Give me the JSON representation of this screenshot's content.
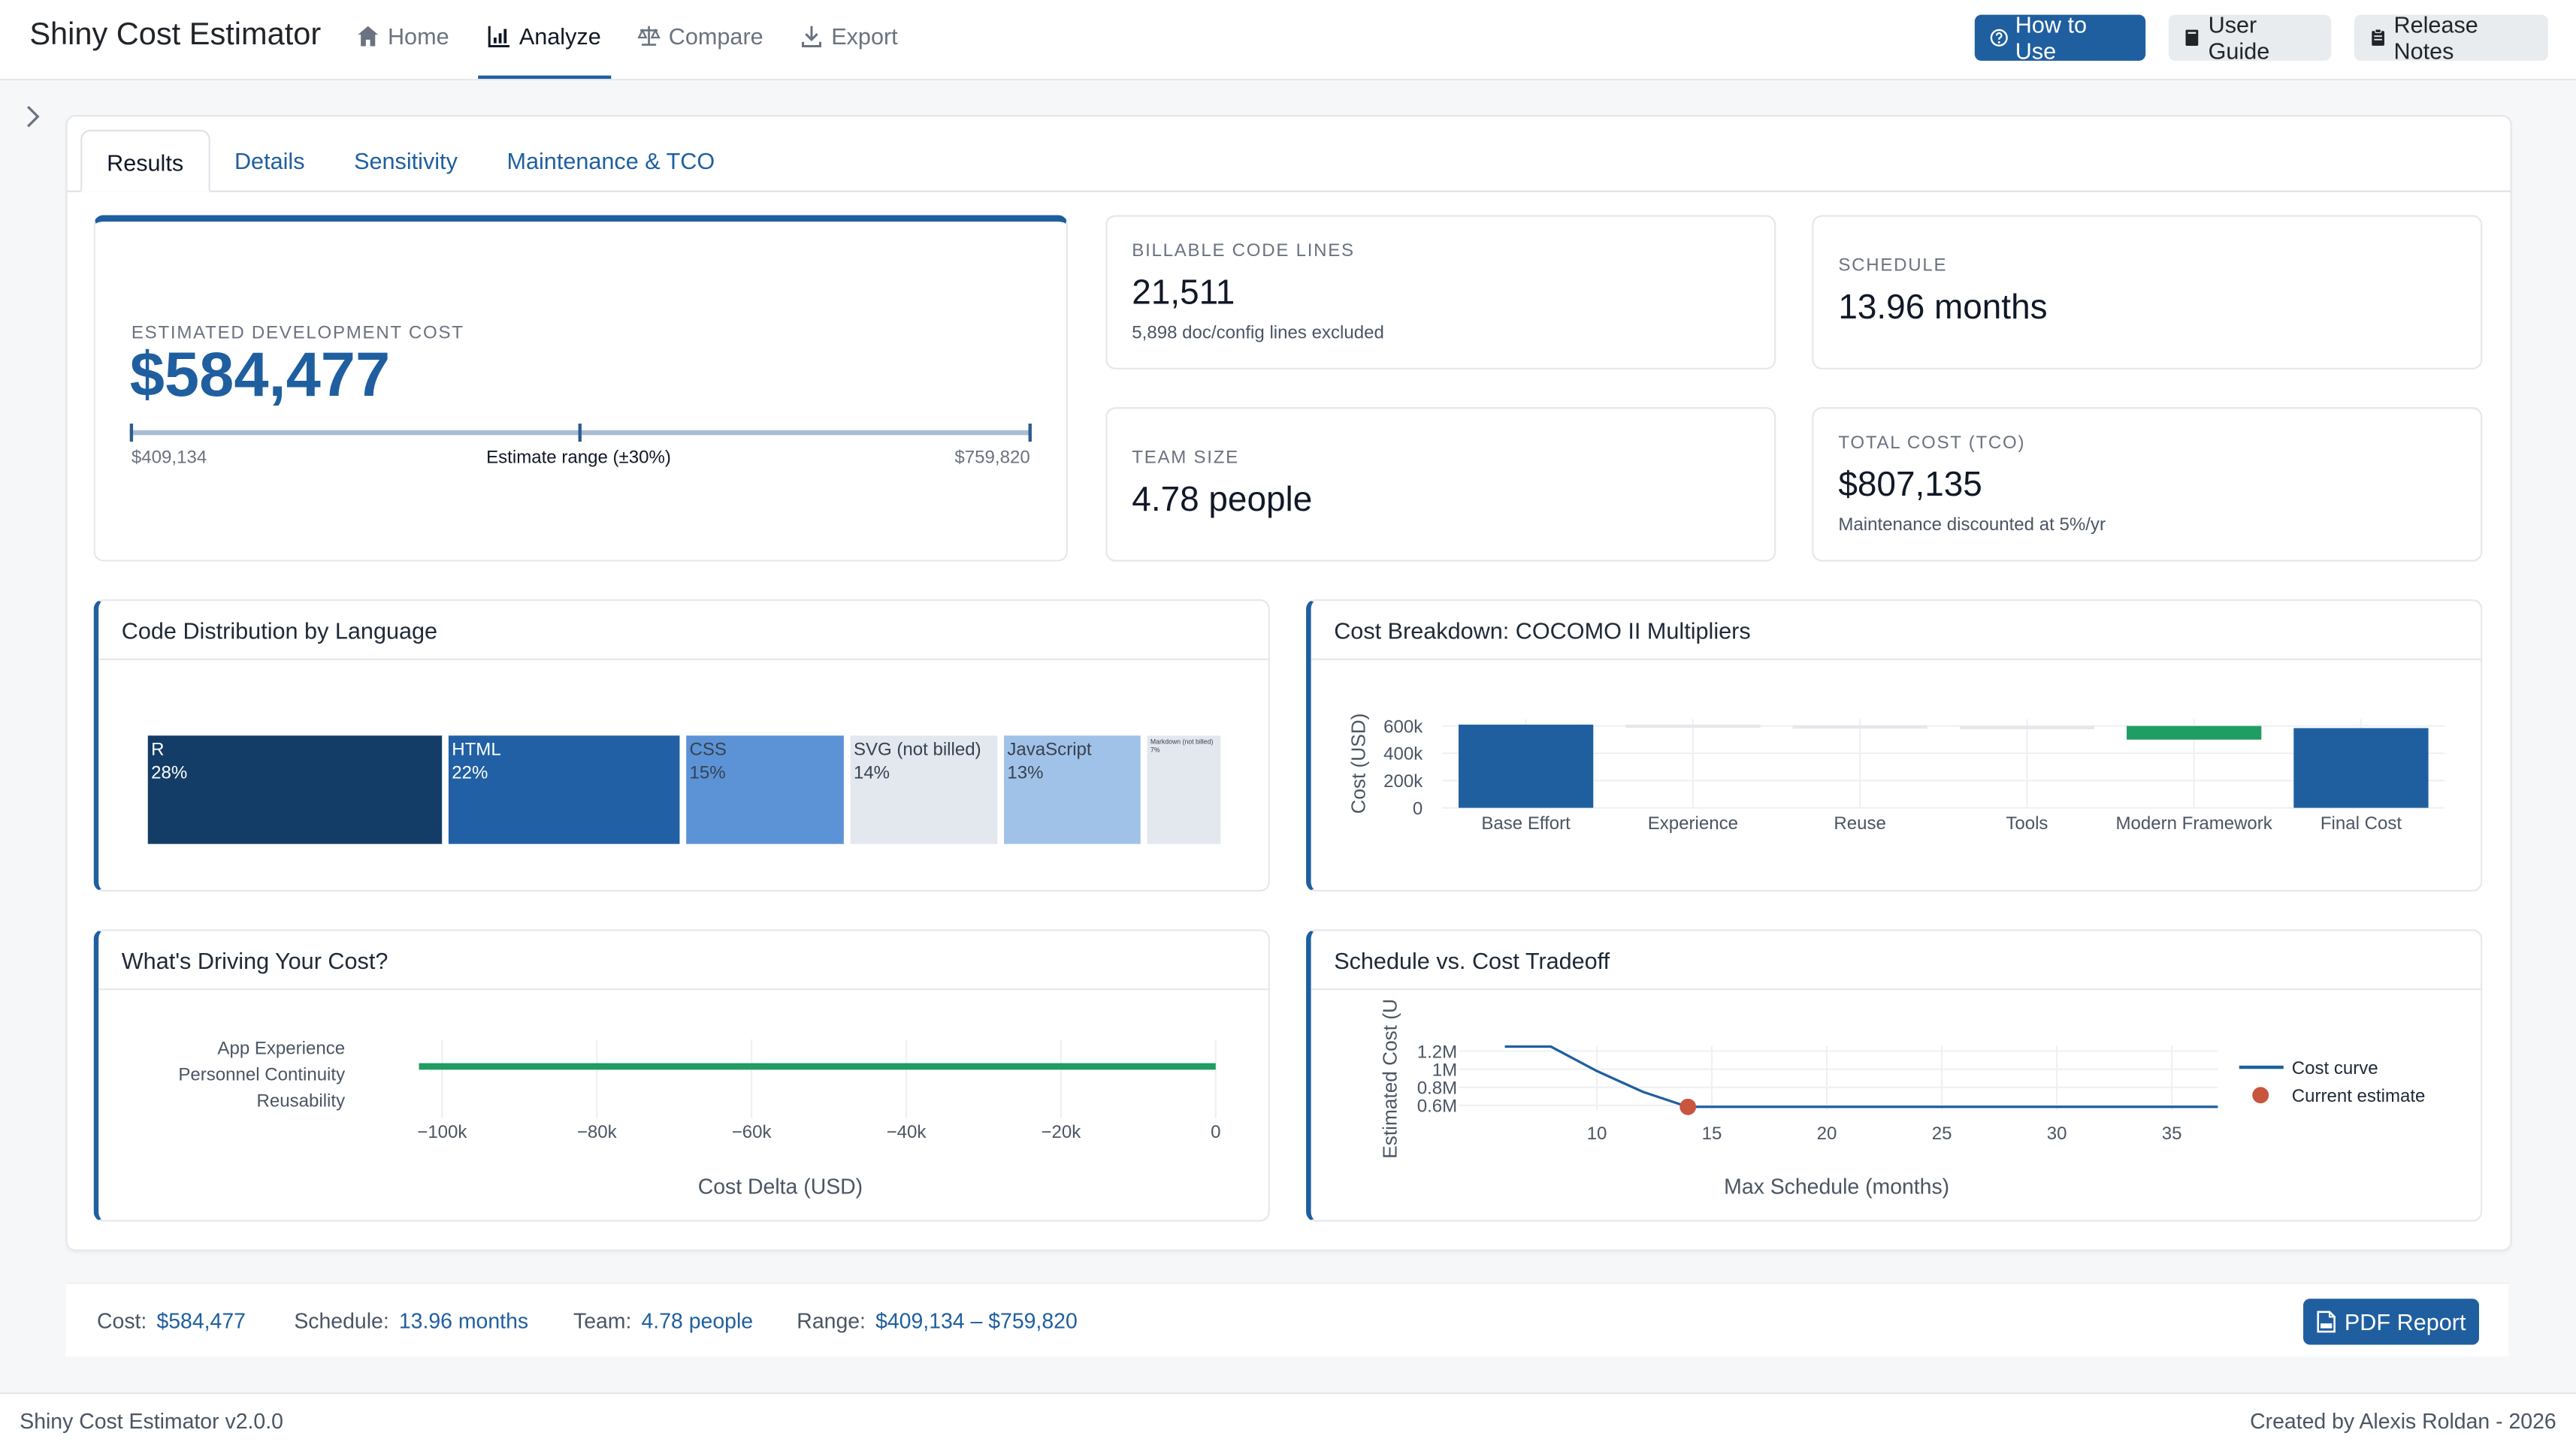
{
  "app": {
    "brand": "Shiny Cost Estimator",
    "nav": [
      "Home",
      "Analyze",
      "Compare",
      "Export"
    ],
    "buttons": {
      "how_to": "How to Use",
      "guide": "User Guide",
      "release": "Release Notes"
    }
  },
  "tabs": [
    "Results",
    "Details",
    "Sensitivity",
    "Maintenance & TCO"
  ],
  "hero": {
    "label": "ESTIMATED DEVELOPMENT COST",
    "value": "$584,477",
    "range_low": "$409,134",
    "range_label": "Estimate range (±30%)",
    "range_high": "$759,820"
  },
  "stats": {
    "lines": {
      "label": "BILLABLE CODE LINES",
      "value": "21,511",
      "sub": "5,898 doc/config lines excluded"
    },
    "schedule": {
      "label": "SCHEDULE",
      "value": "13.96 months"
    },
    "team": {
      "label": "TEAM SIZE",
      "value": "4.78 people"
    },
    "tco": {
      "label": "TOTAL COST (TCO)",
      "value": "$807,135",
      "sub": "Maintenance discounted at 5%/yr"
    }
  },
  "panels": {
    "languages": "Code Distribution by Language",
    "breakdown": "Cost Breakdown: COCOMO II Multipliers",
    "drivers": "What's Driving Your Cost?",
    "tradeoff": "Schedule vs. Cost Tradeoff"
  },
  "chart_data": [
    {
      "type": "treemap",
      "title": "Code Distribution by Language",
      "items": [
        {
          "label": "R",
          "pct": "28%",
          "share": 28,
          "color": "#133d66"
        },
        {
          "label": "HTML",
          "pct": "22%",
          "share": 22,
          "color": "#2160a4"
        },
        {
          "label": "CSS",
          "pct": "15%",
          "share": 15,
          "color": "#5b93d6"
        },
        {
          "label": "SVG (not billed)",
          "pct": "14%",
          "share": 14,
          "color": "#e3e8ef"
        },
        {
          "label": "JavaScript",
          "pct": "13%",
          "share": 13,
          "color": "#a1c2e8"
        },
        {
          "label": "Markdown (not billed)",
          "pct": "7%",
          "share": 7,
          "color": "#e3e8ef"
        }
      ]
    },
    {
      "type": "bar",
      "title": "Cost Breakdown: COCOMO II Multipliers",
      "ylabel": "Cost (USD)",
      "ylim": [
        0,
        700000
      ],
      "yticks": [
        "0",
        "200k",
        "400k",
        "600k"
      ],
      "categories": [
        "Base Effort",
        "Experience",
        "Reuse",
        "Tools",
        "Modern Framework",
        "Final Cost"
      ],
      "bars": [
        {
          "base": 0,
          "top": 610000,
          "color": "#1f5fa0"
        },
        {
          "base": 610000,
          "top": 605000,
          "color": "#e5e7eb"
        },
        {
          "base": 605000,
          "top": 600000,
          "color": "#e5e7eb"
        },
        {
          "base": 600000,
          "top": 595000,
          "color": "#e5e7eb"
        },
        {
          "base": 600000,
          "top": 500000,
          "color": "#1f9d63"
        },
        {
          "base": 0,
          "top": 584477,
          "color": "#1f5fa0"
        }
      ]
    },
    {
      "type": "bar",
      "orientation": "horizontal",
      "title": "What's Driving Your Cost?",
      "xlabel": "Cost Delta (USD)",
      "xlim": [
        -103000,
        0
      ],
      "xticks": [
        "−100k",
        "−80k",
        "−60k",
        "−40k",
        "−20k",
        "0"
      ],
      "categories": [
        "App Experience",
        "Personnel Continuity",
        "Reusability"
      ],
      "values": [
        -103000,
        -103000,
        -103000
      ]
    },
    {
      "type": "line",
      "title": "Schedule vs. Cost Tradeoff",
      "xlabel": "Max Schedule (months)",
      "ylabel": "Estimated Cost (U",
      "xlim": [
        4,
        37
      ],
      "ylim": [
        0.55,
        1.3
      ],
      "xticks": [
        "10",
        "15",
        "20",
        "25",
        "30",
        "35"
      ],
      "yticks": [
        "0.6M",
        "0.8M",
        "1M",
        "1.2M"
      ],
      "series": [
        {
          "name": "Cost curve",
          "x": [
            6,
            8,
            10,
            12,
            13.96,
            16,
            20,
            25,
            30,
            35,
            37
          ],
          "y": [
            1.25,
            1.25,
            0.98,
            0.75,
            0.584,
            0.584,
            0.584,
            0.584,
            0.584,
            0.584,
            0.584
          ]
        },
        {
          "name": "Current estimate",
          "x": [
            13.96
          ],
          "y": [
            0.584
          ]
        }
      ]
    }
  ],
  "summary": {
    "cost_label": "Cost:",
    "cost": "$584,477",
    "schedule_label": "Schedule:",
    "schedule": "13.96 months",
    "team_label": "Team:",
    "team": "4.78 people",
    "range_label": "Range:",
    "range": "$409,134 – $759,820",
    "pdf": "PDF Report"
  },
  "footer": {
    "left": "Shiny Cost Estimator v2.0.0",
    "right": "Created by Alexis Roldan - 2026"
  }
}
